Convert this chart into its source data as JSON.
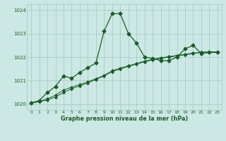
{
  "title": "Graphe pression niveau de la mer (hPa)",
  "bg_color": "#cce8e4",
  "grid_color": "#9cc8c0",
  "line_color": "#1a5c28",
  "xlim": [
    -0.5,
    23.5
  ],
  "ylim": [
    1019.75,
    1024.25
  ],
  "yticks": [
    1020,
    1021,
    1022,
    1023,
    1024
  ],
  "xticks": [
    0,
    1,
    2,
    3,
    4,
    5,
    6,
    7,
    8,
    9,
    10,
    11,
    12,
    13,
    14,
    15,
    16,
    17,
    18,
    19,
    20,
    21,
    22,
    23
  ],
  "series": [
    {
      "x": [
        0,
        1,
        2,
        3,
        4,
        5,
        6,
        7,
        8,
        9,
        10,
        11,
        12,
        13,
        14,
        15,
        16,
        17,
        18,
        19,
        20,
        21,
        22,
        23
      ],
      "y": [
        1020.05,
        1020.15,
        1020.5,
        1020.75,
        1021.2,
        1021.1,
        1021.35,
        1021.55,
        1021.75,
        1023.1,
        1023.85,
        1023.85,
        1023.0,
        1022.6,
        1022.0,
        1021.95,
        1021.85,
        1021.85,
        1022.0,
        1022.35,
        1022.5,
        1022.15,
        1022.2,
        1022.2
      ]
    },
    {
      "x": [
        0,
        1,
        2,
        3,
        4,
        5,
        6,
        7,
        8,
        9,
        10,
        11,
        12,
        13,
        14,
        15,
        16,
        17,
        18,
        19,
        20,
        21,
        22,
        23
      ],
      "y": [
        1020.05,
        1020.1,
        1020.18,
        1020.3,
        1020.5,
        1020.65,
        1020.78,
        1020.9,
        1021.05,
        1021.2,
        1021.38,
        1021.5,
        1021.6,
        1021.7,
        1021.8,
        1021.88,
        1021.95,
        1022.0,
        1022.05,
        1022.1,
        1022.15,
        1022.2,
        1022.22,
        1022.22
      ]
    },
    {
      "x": [
        0,
        1,
        2,
        3,
        4,
        5,
        6,
        7,
        8,
        9,
        10,
        11,
        12,
        13,
        14,
        15,
        16,
        17,
        18,
        19,
        20,
        21,
        22,
        23
      ],
      "y": [
        1020.05,
        1020.12,
        1020.22,
        1020.38,
        1020.6,
        1020.72,
        1020.83,
        1020.95,
        1021.08,
        1021.22,
        1021.42,
        1021.53,
        1021.63,
        1021.73,
        1021.83,
        1021.91,
        1021.97,
        1022.02,
        1022.07,
        1022.12,
        1022.17,
        1022.2,
        1022.22,
        1022.22
      ]
    }
  ]
}
